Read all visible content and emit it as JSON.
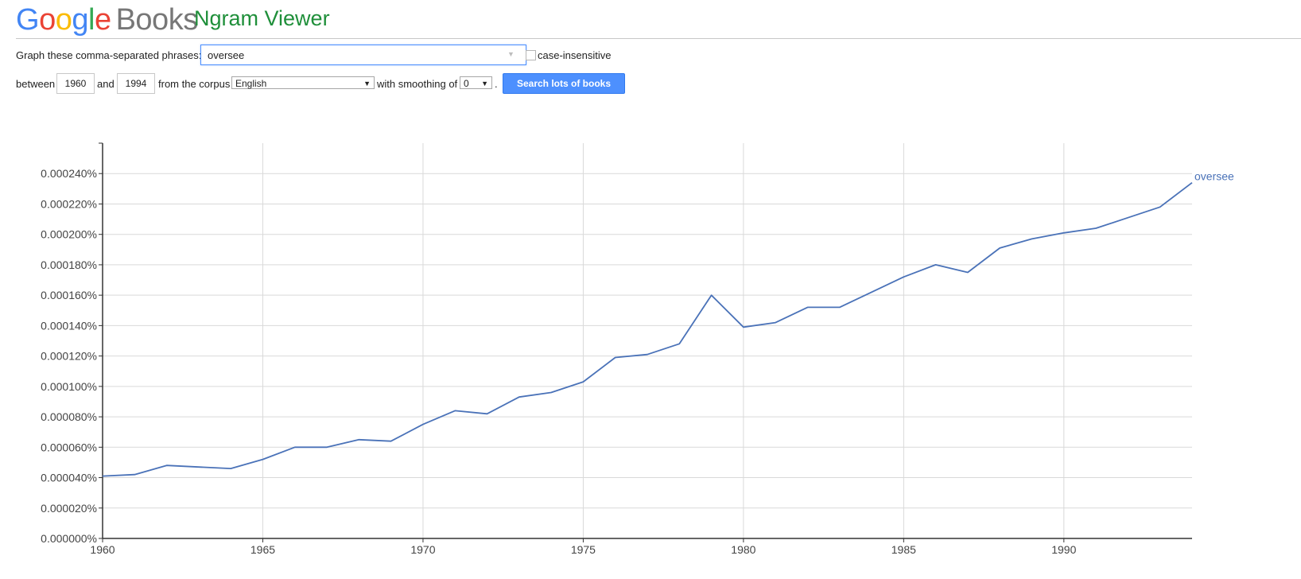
{
  "header": {
    "logo_text": "Google",
    "logo_books": "Books",
    "app_title": "Ngram Viewer"
  },
  "form": {
    "phrases_label": "Graph these comma-separated phrases:",
    "phrases_value": "oversee",
    "case_insensitive_label": "case-insensitive",
    "case_insensitive_checked": false,
    "between_label": "between",
    "start_year": "1960",
    "and_label": "and",
    "end_year": "1994",
    "corpus_label": "from the corpus",
    "corpus_value": "English",
    "smoothing_label": "with smoothing of",
    "smoothing_value": "0",
    "period": ".",
    "search_button": "Search lots of books"
  },
  "chart_data": {
    "type": "line",
    "title": "",
    "xlabel": "",
    "ylabel": "",
    "xlim": [
      1960,
      1994
    ],
    "ylim": [
      0,
      0.00026
    ],
    "x_ticks": [
      1960,
      1965,
      1970,
      1975,
      1980,
      1985,
      1990
    ],
    "x_tick_labels": [
      "1960",
      "1965",
      "1970",
      "1975",
      "1980",
      "1985",
      "1990"
    ],
    "y_ticks": [
      0,
      2e-05,
      4e-05,
      6e-05,
      8e-05,
      0.0001,
      0.00012,
      0.00014,
      0.00016,
      0.00018,
      0.0002,
      0.00022,
      0.00024
    ],
    "y_tick_labels": [
      "0.000000%",
      "0.000020%",
      "0.000040%",
      "0.000060%",
      "0.000080%",
      "0.000100%",
      "0.000120%",
      "0.000140%",
      "0.000160%",
      "0.000180%",
      "0.000200%",
      "0.000220%",
      "0.000240%"
    ],
    "grid": true,
    "series_label_placement": "end-of-line",
    "series": [
      {
        "name": "oversee",
        "color": "#4a72b8",
        "x": [
          1960,
          1961,
          1962,
          1963,
          1964,
          1965,
          1966,
          1967,
          1968,
          1969,
          1970,
          1971,
          1972,
          1973,
          1974,
          1975,
          1976,
          1977,
          1978,
          1979,
          1980,
          1981,
          1982,
          1983,
          1984,
          1985,
          1986,
          1987,
          1988,
          1989,
          1990,
          1991,
          1992,
          1993,
          1994
        ],
        "values": [
          4.1e-05,
          4.2e-05,
          4.8e-05,
          4.7e-05,
          4.6e-05,
          5.2e-05,
          6e-05,
          6e-05,
          6.5e-05,
          6.4e-05,
          7.5e-05,
          8.4e-05,
          8.2e-05,
          9.3e-05,
          9.6e-05,
          0.000103,
          0.000119,
          0.000121,
          0.000128,
          0.00016,
          0.000139,
          0.000142,
          0.000152,
          0.000152,
          0.000162,
          0.000172,
          0.00018,
          0.000175,
          0.000191,
          0.000197,
          0.000201,
          0.000204,
          0.000211,
          0.000218,
          0.000234
        ]
      }
    ]
  }
}
